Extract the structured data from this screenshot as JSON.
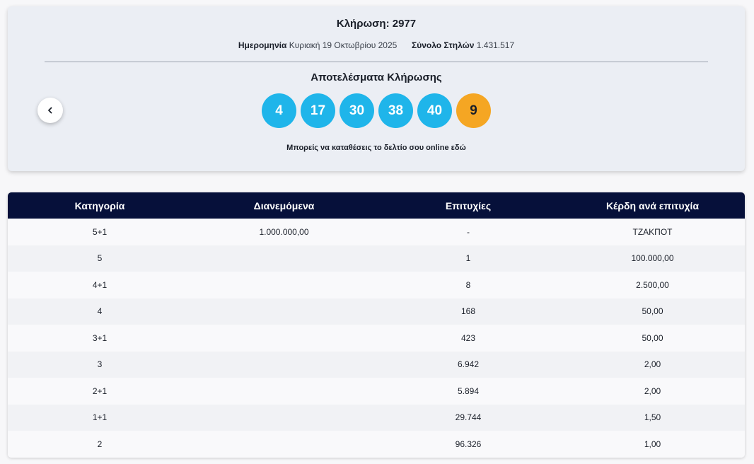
{
  "draw": {
    "title": "Κλήρωση: 2977",
    "date_label": "Ημερομηνία",
    "date_value": "Κυριακή 19 Οκτωβρίου 2025",
    "columns_label": "Σύνολο Στηλών",
    "columns_value": "1.431.517",
    "results_title": "Αποτελέσματα Κλήρωσης",
    "main_numbers": [
      "4",
      "17",
      "30",
      "38",
      "40"
    ],
    "bonus_number": "9",
    "online_text": "Μπορείς να καταθέσεις το δελτίο σου online εδώ",
    "prev_icon": "chevron-left-icon",
    "colors": {
      "main_ball": "#1fb5ea",
      "bonus_ball": "#f5a623",
      "header": "#06103a"
    }
  },
  "table": {
    "headers": [
      "Κατηγορία",
      "Διανεμόμενα",
      "Επιτυχίες",
      "Κέρδη ανά επιτυχία"
    ],
    "rows": [
      [
        "5+1",
        "1.000.000,00",
        "-",
        "ΤΖΑΚΠΟΤ"
      ],
      [
        "5",
        "",
        "1",
        "100.000,00"
      ],
      [
        "4+1",
        "",
        "8",
        "2.500,00"
      ],
      [
        "4",
        "",
        "168",
        "50,00"
      ],
      [
        "3+1",
        "",
        "423",
        "50,00"
      ],
      [
        "3",
        "",
        "6.942",
        "2,00"
      ],
      [
        "2+1",
        "",
        "5.894",
        "2,00"
      ],
      [
        "1+1",
        "",
        "29.744",
        "1,50"
      ],
      [
        "2",
        "",
        "96.326",
        "1,00"
      ]
    ]
  }
}
